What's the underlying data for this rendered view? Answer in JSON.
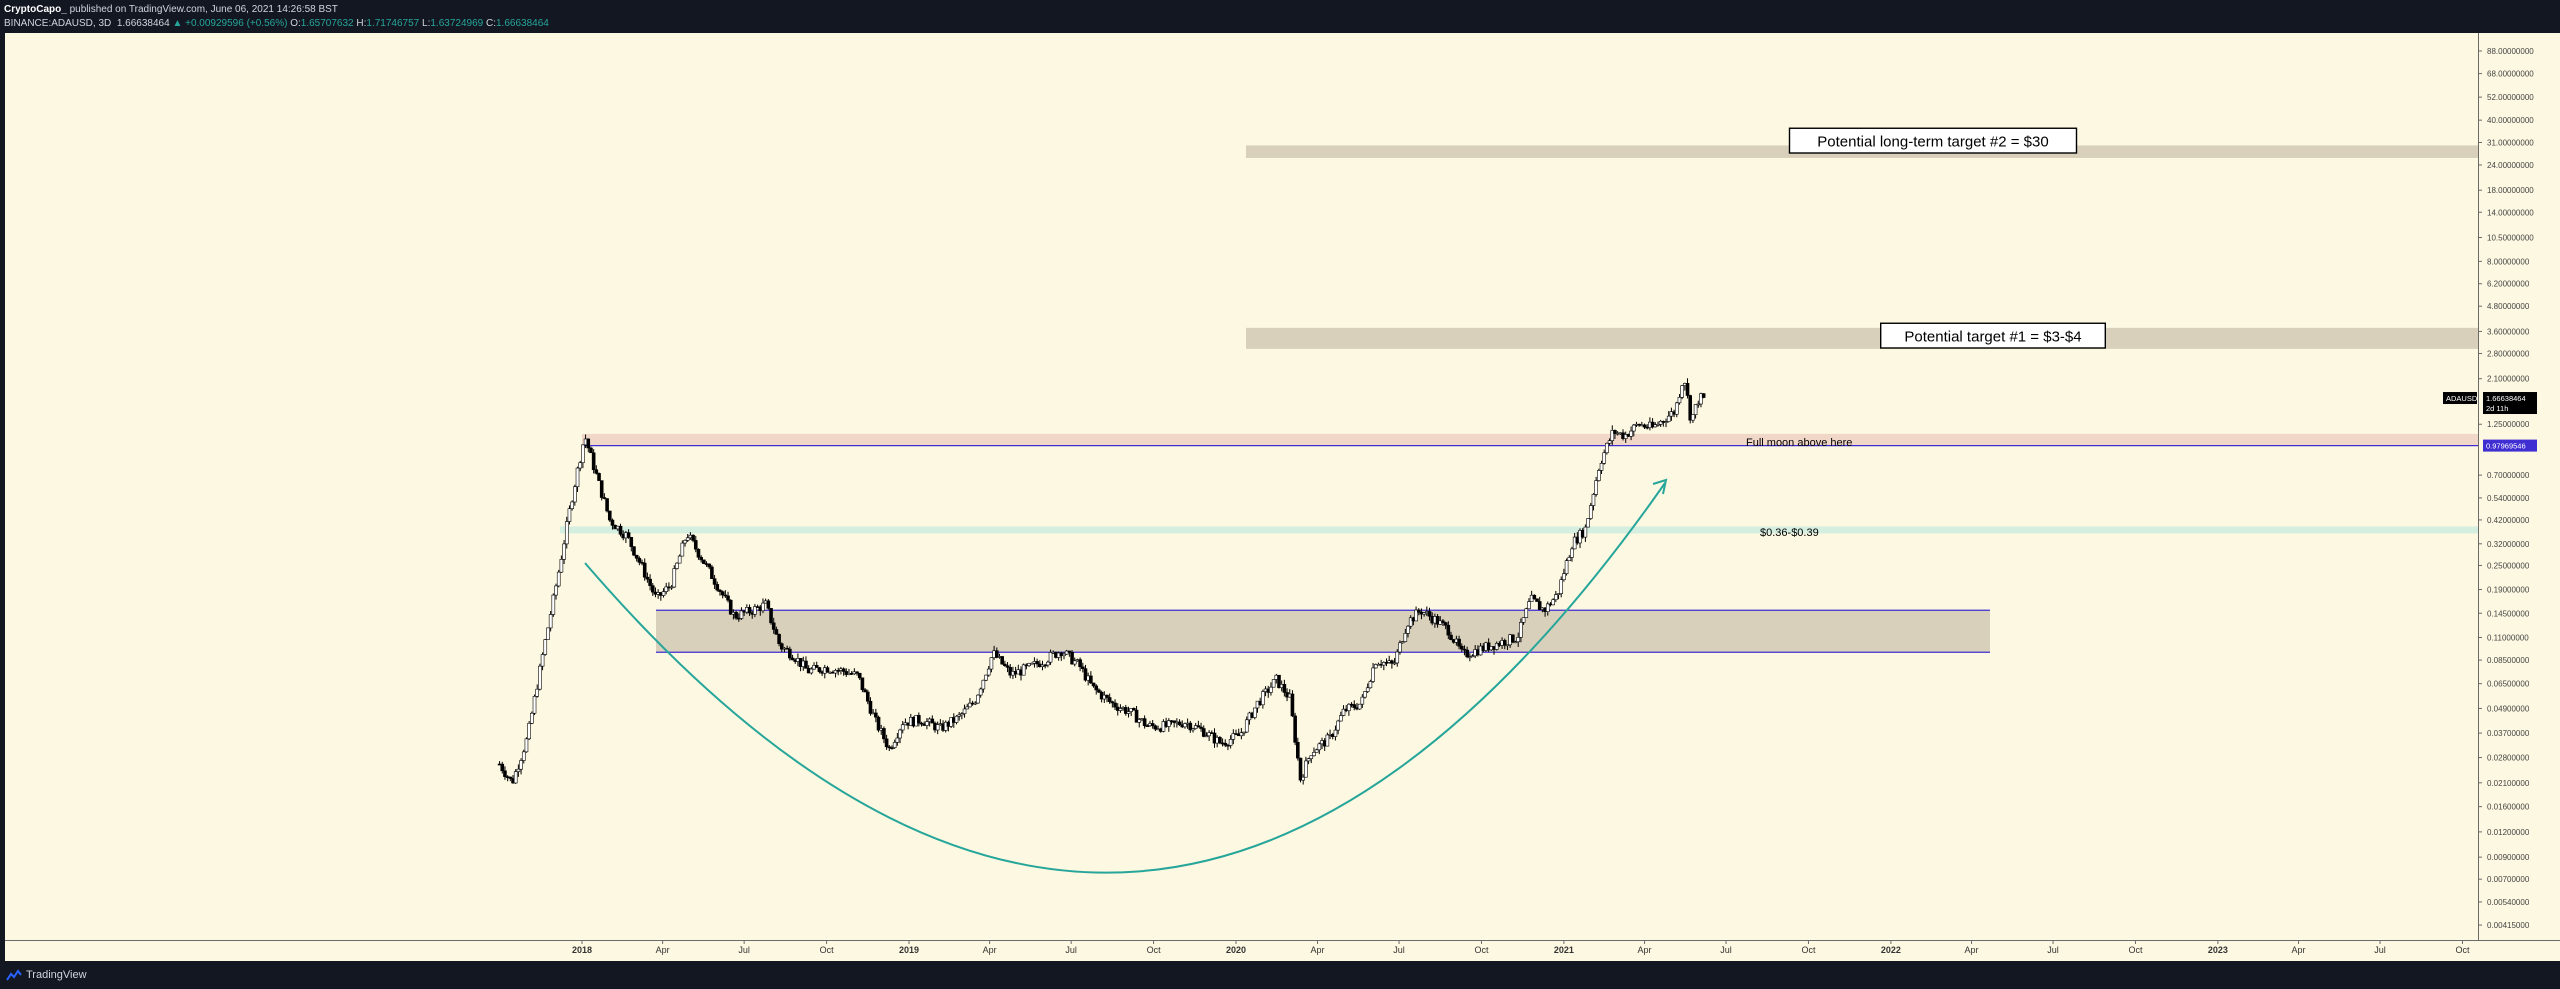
{
  "header": {
    "author": "CryptoCapo_",
    "published_text": "published on TradingView.com, June 06, 2021 14:26:58 BST",
    "symbol_line": "BINANCE:ADAUSD, 3D",
    "last_price": "1.66638464",
    "change": "▲ +0.00929596 (+0.56%)",
    "o_label": "O:",
    "o_value": "1.65707632",
    "h_label": "H:",
    "h_value": "1.71746757",
    "l_label": "L:",
    "l_value": "1.63724969",
    "c_label": "C:",
    "c_value": "1.66638464"
  },
  "footer": {
    "brand": "TradingView"
  },
  "chart_data": {
    "type": "candlestick",
    "symbol": "ADAUSD",
    "timeframe": "3D",
    "y_scale": "log",
    "ylim": [
      0.0035,
      108
    ],
    "y_ticks": [
      {
        "label": "88.00000000",
        "value": 88
      },
      {
        "label": "68.00000000",
        "value": 68
      },
      {
        "label": "52.00000000",
        "value": 52
      },
      {
        "label": "40.00000000",
        "value": 40
      },
      {
        "label": "31.00000000",
        "value": 31
      },
      {
        "label": "24.00000000",
        "value": 24
      },
      {
        "label": "18.00000000",
        "value": 18
      },
      {
        "label": "14.00000000",
        "value": 14
      },
      {
        "label": "10.50000000",
        "value": 10.5
      },
      {
        "label": "8.00000000",
        "value": 8
      },
      {
        "label": "6.20000000",
        "value": 6.2
      },
      {
        "label": "4.80000000",
        "value": 4.8
      },
      {
        "label": "3.60000000",
        "value": 3.6
      },
      {
        "label": "2.80000000",
        "value": 2.8
      },
      {
        "label": "2.10000000",
        "value": 2.1
      },
      {
        "label": "1.25000000",
        "value": 1.25
      },
      {
        "label": "0.70000000",
        "value": 0.7
      },
      {
        "label": "0.54000000",
        "value": 0.54
      },
      {
        "label": "0.42000000",
        "value": 0.42
      },
      {
        "label": "0.32000000",
        "value": 0.32
      },
      {
        "label": "0.25000000",
        "value": 0.25
      },
      {
        "label": "0.19000000",
        "value": 0.19
      },
      {
        "label": "0.14500000",
        "value": 0.145
      },
      {
        "label": "0.11000000",
        "value": 0.11
      },
      {
        "label": "0.08500000",
        "value": 0.085
      },
      {
        "label": "0.06500000",
        "value": 0.065
      },
      {
        "label": "0.04900000",
        "value": 0.049
      },
      {
        "label": "0.03700000",
        "value": 0.037
      },
      {
        "label": "0.02800000",
        "value": 0.028
      },
      {
        "label": "0.02100000",
        "value": 0.021
      },
      {
        "label": "0.01600000",
        "value": 0.016
      },
      {
        "label": "0.01200000",
        "value": 0.012
      },
      {
        "label": "0.00900000",
        "value": 0.009
      },
      {
        "label": "0.00700000",
        "value": 0.007
      },
      {
        "label": "0.00540000",
        "value": 0.0054
      },
      {
        "label": "0.00415000",
        "value": 0.00415
      }
    ],
    "x_ticks": [
      {
        "label": "2018",
        "date": "2018-01-01",
        "bold": true
      },
      {
        "label": "Apr",
        "date": "2018-04-01"
      },
      {
        "label": "Jul",
        "date": "2018-07-01"
      },
      {
        "label": "Oct",
        "date": "2018-10-01"
      },
      {
        "label": "2019",
        "date": "2019-01-01",
        "bold": true
      },
      {
        "label": "Apr",
        "date": "2019-04-01"
      },
      {
        "label": "Jul",
        "date": "2019-07-01"
      },
      {
        "label": "Oct",
        "date": "2019-10-01"
      },
      {
        "label": "2020",
        "date": "2020-01-01",
        "bold": true
      },
      {
        "label": "Apr",
        "date": "2020-04-01"
      },
      {
        "label": "Jul",
        "date": "2020-07-01"
      },
      {
        "label": "Oct",
        "date": "2020-10-01"
      },
      {
        "label": "2021",
        "date": "2021-01-01",
        "bold": true
      },
      {
        "label": "Apr",
        "date": "2021-04-01"
      },
      {
        "label": "Jul",
        "date": "2021-07-01"
      },
      {
        "label": "Oct",
        "date": "2021-10-01"
      },
      {
        "label": "2022",
        "date": "2022-01-01",
        "bold": true
      },
      {
        "label": "Apr",
        "date": "2022-04-01"
      },
      {
        "label": "Jul",
        "date": "2022-07-01"
      },
      {
        "label": "Oct",
        "date": "2022-10-01"
      },
      {
        "label": "2023",
        "date": "2023-01-01",
        "bold": true
      },
      {
        "label": "Apr",
        "date": "2023-04-01"
      },
      {
        "label": "Jul",
        "date": "2023-07-01"
      },
      {
        "label": "Oct",
        "date": "2023-10-01"
      }
    ],
    "price_path": [
      [
        "2017-10-01",
        0.026
      ],
      [
        "2017-10-15",
        0.021
      ],
      [
        "2017-11-01",
        0.035
      ],
      [
        "2017-11-20",
        0.1
      ],
      [
        "2017-12-05",
        0.22
      ],
      [
        "2017-12-20",
        0.52
      ],
      [
        "2018-01-04",
        1.1
      ],
      [
        "2018-01-15",
        0.75
      ],
      [
        "2018-02-01",
        0.42
      ],
      [
        "2018-02-20",
        0.35
      ],
      [
        "2018-03-10",
        0.24
      ],
      [
        "2018-03-25",
        0.17
      ],
      [
        "2018-04-10",
        0.2
      ],
      [
        "2018-04-28",
        0.36
      ],
      [
        "2018-05-15",
        0.27
      ],
      [
        "2018-06-01",
        0.2
      ],
      [
        "2018-06-20",
        0.14
      ],
      [
        "2018-07-10",
        0.15
      ],
      [
        "2018-07-25",
        0.16
      ],
      [
        "2018-08-10",
        0.1
      ],
      [
        "2018-08-25",
        0.09
      ],
      [
        "2018-09-10",
        0.075
      ],
      [
        "2018-10-01",
        0.078
      ],
      [
        "2018-10-20",
        0.075
      ],
      [
        "2018-11-05",
        0.071
      ],
      [
        "2018-11-25",
        0.042
      ],
      [
        "2018-12-10",
        0.031
      ],
      [
        "2018-12-25",
        0.042
      ],
      [
        "2019-01-15",
        0.043
      ],
      [
        "2019-02-05",
        0.039
      ],
      [
        "2019-02-25",
        0.044
      ],
      [
        "2019-03-15",
        0.053
      ],
      [
        "2019-04-05",
        0.092
      ],
      [
        "2019-04-25",
        0.072
      ],
      [
        "2019-05-15",
        0.078
      ],
      [
        "2019-06-01",
        0.085
      ],
      [
        "2019-06-20",
        0.095
      ],
      [
        "2019-07-10",
        0.08
      ],
      [
        "2019-07-25",
        0.062
      ],
      [
        "2019-08-15",
        0.052
      ],
      [
        "2019-09-05",
        0.047
      ],
      [
        "2019-09-25",
        0.04
      ],
      [
        "2019-10-15",
        0.04
      ],
      [
        "2019-11-05",
        0.042
      ],
      [
        "2019-11-25",
        0.038
      ],
      [
        "2019-12-15",
        0.033
      ],
      [
        "2020-01-05",
        0.036
      ],
      [
        "2020-01-25",
        0.052
      ],
      [
        "2020-02-15",
        0.068
      ],
      [
        "2020-03-01",
        0.055
      ],
      [
        "2020-03-13",
        0.022
      ],
      [
        "2020-03-25",
        0.03
      ],
      [
        "2020-04-15",
        0.035
      ],
      [
        "2020-05-01",
        0.048
      ],
      [
        "2020-05-20",
        0.052
      ],
      [
        "2020-06-05",
        0.085
      ],
      [
        "2020-06-25",
        0.08
      ],
      [
        "2020-07-10",
        0.13
      ],
      [
        "2020-07-25",
        0.15
      ],
      [
        "2020-08-10",
        0.135
      ],
      [
        "2020-08-25",
        0.12
      ],
      [
        "2020-09-10",
        0.09
      ],
      [
        "2020-09-25",
        0.095
      ],
      [
        "2020-10-10",
        0.1
      ],
      [
        "2020-10-25",
        0.105
      ],
      [
        "2020-11-10",
        0.11
      ],
      [
        "2020-11-25",
        0.17
      ],
      [
        "2020-12-10",
        0.15
      ],
      [
        "2020-12-25",
        0.18
      ],
      [
        "2021-01-10",
        0.32
      ],
      [
        "2021-01-25",
        0.38
      ],
      [
        "2021-02-10",
        0.8
      ],
      [
        "2021-02-25",
        1.15
      ],
      [
        "2021-03-10",
        1.1
      ],
      [
        "2021-03-25",
        1.25
      ],
      [
        "2021-04-10",
        1.2
      ],
      [
        "2021-04-25",
        1.35
      ],
      [
        "2021-05-05",
        1.45
      ],
      [
        "2021-05-15",
        2.2
      ],
      [
        "2021-05-23",
        1.3
      ],
      [
        "2021-06-01",
        1.7
      ],
      [
        "2021-06-06",
        1.6664
      ]
    ],
    "zones": [
      {
        "id": "target-2",
        "from": 26.0,
        "to": 30.0,
        "x_start": "2019-10-01",
        "x_end": "2023-12-31",
        "color": "#d8d0bb"
      },
      {
        "id": "target-1",
        "from": 2.95,
        "to": 3.75,
        "x_start": "2019-10-01",
        "x_end": "2023-12-31",
        "color": "#d8d0bb"
      },
      {
        "id": "full-moon",
        "from": 0.98,
        "to": 1.12,
        "x_start": "2017-12-27",
        "x_end": "2023-12-31",
        "color": "#f1d7c8"
      },
      {
        "id": "support-band",
        "from": 0.36,
        "to": 0.39,
        "x_start": "2017-10-01",
        "x_end": "2023-12-31",
        "color": "#d4eee0"
      },
      {
        "id": "accumulation",
        "from": 0.093,
        "to": 0.15,
        "x_start": "2018-03-25",
        "x_end": "2022-04-05",
        "color": "#d8d0bb"
      }
    ],
    "lines": [
      {
        "id": "full-moon-line",
        "y": 0.98,
        "x_start": "2017-12-27",
        "x_end": "2023-12-31",
        "color": "#3f2ed1"
      },
      {
        "id": "range-top",
        "y": 0.15,
        "x_start": "2018-03-25",
        "x_end": "2022-04-05",
        "color": "#3f2ed1"
      },
      {
        "id": "range-bottom",
        "y": 0.093,
        "x_start": "2018-03-25",
        "x_end": "2022-04-05",
        "color": "#3f2ed1"
      }
    ],
    "annotations": [
      {
        "id": "label-target-2",
        "text": "Potential long-term target #2 = $30",
        "boxed": true
      },
      {
        "id": "label-target-1",
        "text": "Potential target #1 = $3-$4",
        "boxed": true
      },
      {
        "id": "label-full-moon",
        "text": "Full moon above here",
        "boxed": false
      },
      {
        "id": "label-support",
        "text": "$0.36-$0.39",
        "boxed": false
      }
    ],
    "price_labels": [
      {
        "id": "last-price-symbol",
        "text": "ADAUSD"
      },
      {
        "id": "last-price-value",
        "text": "1.66638464"
      },
      {
        "id": "last-price-countdown",
        "text": "2d 11h"
      },
      {
        "id": "level-price-tag",
        "text": "0.97969546"
      }
    ],
    "curve_color": "#26a69a"
  }
}
